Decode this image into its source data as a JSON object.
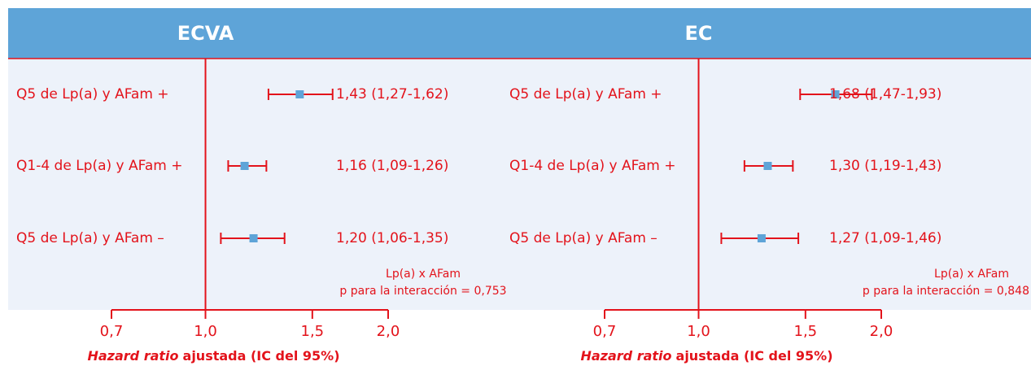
{
  "chart_data": [
    {
      "type": "forest",
      "title": "ECVA",
      "categories": [
        "Q5 de Lp(a) y AFam +",
        "Q1-4 de Lp(a) y AFam +",
        "Q5 de Lp(a) y AFam –"
      ],
      "values": [
        1.43,
        1.16,
        1.2
      ],
      "lower": [
        1.27,
        1.09,
        1.06
      ],
      "upper": [
        1.62,
        1.26,
        1.35
      ],
      "value_labels": [
        "1,43 (1,27-1,62)",
        "1,16 (1,09-1,26)",
        "1,20 (1,06-1,35)"
      ],
      "annotation": [
        "Lp(a) x AFam",
        "p para la interacción = 0,753"
      ],
      "xlabel_emphasis": "Hazard ratio",
      "xlabel": "ajustada (IC del 95%)",
      "xlim": [
        0.7,
        2.0
      ],
      "log_x": true,
      "reference": 1.0,
      "xticks": [
        {
          "value": 0.7,
          "label": "0,7"
        },
        {
          "value": 1.0,
          "label": "1,0"
        },
        {
          "value": 1.5,
          "label": "1,5"
        },
        {
          "value": 2.0,
          "label": "2,0"
        }
      ],
      "color": "#e3131b",
      "marker_color": "#5ea4d8"
    },
    {
      "type": "forest",
      "title": "EC",
      "categories": [
        "Q5 de Lp(a) y AFam +",
        "Q1-4 de Lp(a) y AFam +",
        "Q5 de Lp(a) y AFam –"
      ],
      "values": [
        1.68,
        1.3,
        1.27
      ],
      "lower": [
        1.47,
        1.19,
        1.09
      ],
      "upper": [
        1.93,
        1.43,
        1.46
      ],
      "value_labels": [
        "1,68 (1,47-1,93)",
        "1,30 (1,19-1,43)",
        "1,27 (1,09-1,46)"
      ],
      "annotation": [
        "Lp(a) x AFam",
        "p para la interacción = 0,848"
      ],
      "xlabel_emphasis": "Hazard ratio",
      "xlabel": "ajustada (IC del 95%)",
      "xlim": [
        0.7,
        2.0
      ],
      "log_x": true,
      "reference": 1.0,
      "xticks": [
        {
          "value": 0.7,
          "label": "0,7"
        },
        {
          "value": 1.0,
          "label": "1,0"
        },
        {
          "value": 1.5,
          "label": "1,5"
        },
        {
          "value": 2.0,
          "label": "2,0"
        }
      ],
      "color": "#e3131b",
      "marker_color": "#5ea4d8"
    }
  ]
}
